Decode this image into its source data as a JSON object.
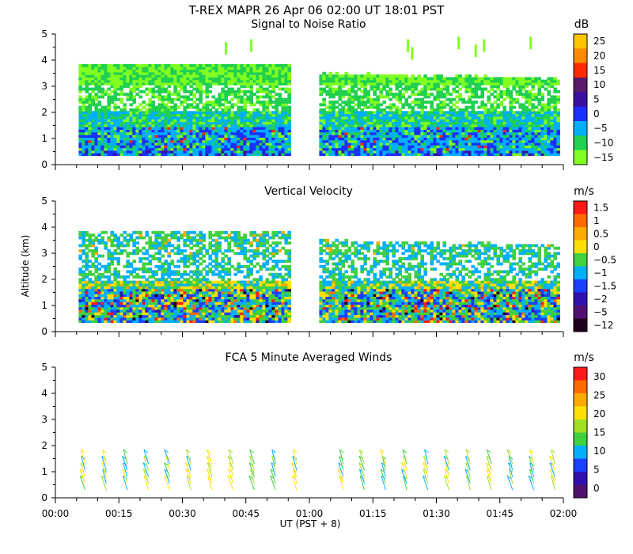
{
  "header": {
    "title": "T-REX  MAPR 26 Apr 06  02:00 UT  18:01  PST"
  },
  "x_axis": {
    "label": "UT  (PST + 8)",
    "range_minutes": [
      0,
      120
    ],
    "ticks": [
      {
        "value": 0,
        "label": "00:00"
      },
      {
        "value": 15,
        "label": "00:15"
      },
      {
        "value": 30,
        "label": "00:30"
      },
      {
        "value": 45,
        "label": "00:45"
      },
      {
        "value": 60,
        "label": "01:00"
      },
      {
        "value": 75,
        "label": "01:15"
      },
      {
        "value": 90,
        "label": "01:30"
      },
      {
        "value": 105,
        "label": "01:45"
      },
      {
        "value": 120,
        "label": "02:00"
      }
    ]
  },
  "y_axis": {
    "label": "Altitude (km)",
    "range": [
      0,
      5
    ],
    "ticks": [
      "0",
      "1",
      "2",
      "3",
      "4",
      "5"
    ]
  },
  "chart_data": [
    {
      "type": "heatmap",
      "title": "Signal to Noise Ratio",
      "units": "dB",
      "xlim": [
        0,
        120
      ],
      "ylim": [
        0,
        5
      ],
      "data_gap_minutes": [
        55,
        62
      ],
      "altitude_range_km": [
        0.35,
        3.8
      ],
      "colorbar": {
        "labels": [
          "25",
          "20",
          "15",
          "10",
          "5",
          "0",
          "−5",
          "−10",
          "−15"
        ],
        "colors": [
          "#ffc400",
          "#ff8a00",
          "#ff2a00",
          "#5a1a6a",
          "#3a10a0",
          "#1a30ff",
          "#00b0ff",
          "#20d050",
          "#80ff20"
        ]
      }
    },
    {
      "type": "heatmap",
      "title": "Vertical Velocity",
      "units": "m/s",
      "xlim": [
        0,
        120
      ],
      "ylim": [
        0,
        5
      ],
      "data_gap_minutes": [
        55,
        62
      ],
      "altitude_range_km": [
        0.35,
        3.8
      ],
      "colorbar": {
        "labels": [
          "1.5",
          "1",
          "0.5",
          "0",
          "−0.5",
          "−1",
          "−1.5",
          "−2",
          "−5",
          "−12"
        ],
        "colors": [
          "#ff1a1a",
          "#ff6a00",
          "#ffaa00",
          "#ffe000",
          "#40d040",
          "#00b0ff",
          "#1a40ff",
          "#3010b0",
          "#501070",
          "#200020"
        ]
      }
    },
    {
      "type": "wind_barbs",
      "title": "FCA 5 Minute Averaged Winds",
      "units": "m/s",
      "xlim": [
        0,
        120
      ],
      "ylim": [
        0,
        5
      ],
      "barb_times_minutes": [
        7,
        12,
        17,
        22,
        27,
        32,
        37,
        42,
        47,
        52,
        57,
        68,
        73,
        78,
        83,
        88,
        93,
        98,
        103,
        108,
        113,
        118
      ],
      "colorbar": {
        "labels": [
          "30",
          "25",
          "20",
          "15",
          "10",
          "5",
          "0"
        ],
        "colors": [
          "#ff1a1a",
          "#ff6a00",
          "#ffaa00",
          "#ffe000",
          "#a0e020",
          "#40d040",
          "#00b0ff",
          "#1a40ff",
          "#3010b0",
          "#501070"
        ]
      }
    }
  ]
}
